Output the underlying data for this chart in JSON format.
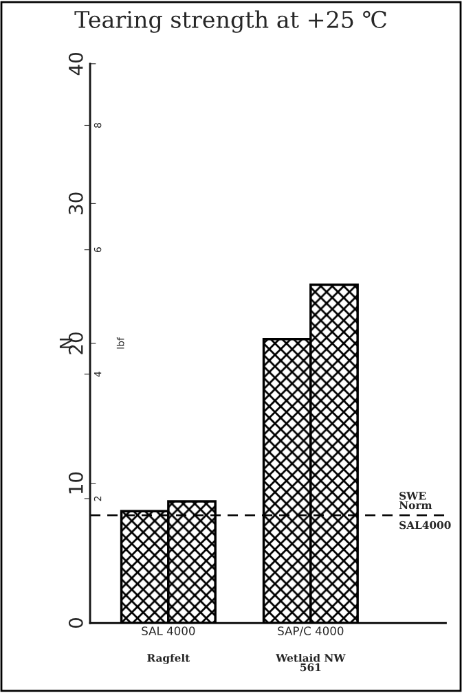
{
  "chart_data": {
    "type": "bar",
    "title": "Tearing strength at +25 ℃",
    "ylabel": "N",
    "y2label": "lbf",
    "categories": [
      "SAL 4000",
      "SAP/C 4000"
    ],
    "series": [
      {
        "color": "#000000",
        "values": [
          8.0,
          20.3
        ]
      },
      {
        "color": "#000000",
        "values": [
          8.7,
          24.2
        ]
      }
    ],
    "ylim": [
      0,
      40
    ],
    "yticks": [
      0,
      10,
      20,
      30,
      40
    ],
    "y2lim": [
      0,
      8.99
    ],
    "y2ticks": [
      2,
      4,
      6,
      8
    ],
    "ref_lines": [
      {
        "axis": "y",
        "value": 7.7,
        "label": "SWE\nNorm\nSAL4000",
        "line_style": "dashed",
        "color": "#000000"
      }
    ],
    "annotations": [
      "Ragfelt",
      "Wetlaid NW\n561"
    ],
    "grid": false,
    "legend": false
  }
}
